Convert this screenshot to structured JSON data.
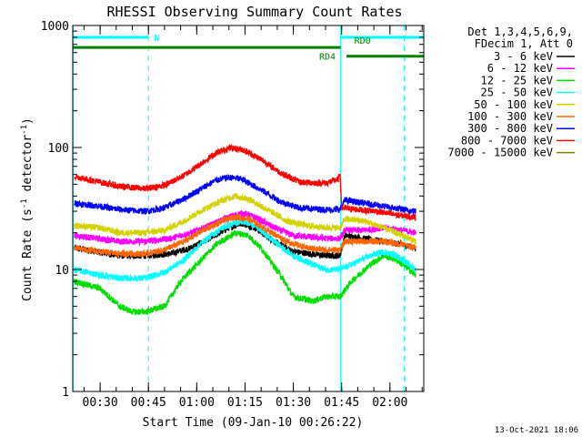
{
  "chart_data": {
    "type": "line",
    "title": "RHESSI Observing Summary Count Rates",
    "xlabel": "Start Time (09-Jan-10 00:26:22)",
    "ylabel_main": "Count Rate (s",
    "ylabel_sup1": "-1",
    "ylabel_mid": " detector",
    "ylabel_sup2": "-1",
    "ylabel_end": ")",
    "y_scale": "log",
    "ylim": [
      1,
      1000
    ],
    "y_ticks": [
      {
        "value": 1,
        "label": "1"
      },
      {
        "value": 10,
        "label": "10"
      },
      {
        "value": 100,
        "label": "100"
      },
      {
        "value": 1000,
        "label": "1000"
      }
    ],
    "x_range_min": [
      21.5,
      130.5
    ],
    "x_ticks": [
      {
        "value": 30,
        "label": "00:30"
      },
      {
        "value": 45,
        "label": "00:45"
      },
      {
        "value": 60,
        "label": "01:00"
      },
      {
        "value": 75,
        "label": "01:15"
      },
      {
        "value": 90,
        "label": "01:30"
      },
      {
        "value": 105,
        "label": "01:45"
      },
      {
        "value": 120,
        "label": "02:00"
      }
    ],
    "legend_header": [
      "Det 1,3,4,5,6,9,",
      "FDecim 1, Att 0"
    ],
    "series": [
      {
        "name": "3 - 6 keV",
        "color": "#000000",
        "points": [
          [
            22,
            15
          ],
          [
            36,
            13
          ],
          [
            44,
            13
          ],
          [
            52,
            13.5
          ],
          [
            58,
            15
          ],
          [
            64,
            18
          ],
          [
            70,
            22
          ],
          [
            74,
            24
          ],
          [
            78,
            22
          ],
          [
            84,
            17
          ],
          [
            90,
            14
          ],
          [
            100,
            13
          ],
          [
            104.5,
            13
          ],
          [
            106,
            19
          ],
          [
            112,
            18
          ],
          [
            118,
            17
          ],
          [
            124,
            16
          ],
          [
            128,
            15
          ]
        ]
      },
      {
        "name": "6 - 12 keV",
        "color": "#ff00ff",
        "points": [
          [
            22,
            19
          ],
          [
            36,
            17
          ],
          [
            44,
            17
          ],
          [
            52,
            18
          ],
          [
            58,
            20
          ],
          [
            64,
            23
          ],
          [
            70,
            27
          ],
          [
            74,
            29
          ],
          [
            78,
            27
          ],
          [
            84,
            22
          ],
          [
            90,
            19
          ],
          [
            100,
            18
          ],
          [
            104.5,
            18
          ],
          [
            106,
            21
          ],
          [
            112,
            21
          ],
          [
            118,
            22
          ],
          [
            124,
            21
          ],
          [
            128,
            20
          ]
        ]
      },
      {
        "name": "12 - 25 keV",
        "color": "#00dd00",
        "points": [
          [
            22,
            8
          ],
          [
            30,
            7
          ],
          [
            36,
            5
          ],
          [
            40,
            4.5
          ],
          [
            44,
            4.5
          ],
          [
            50,
            5
          ],
          [
            55,
            8
          ],
          [
            60,
            11
          ],
          [
            66,
            16
          ],
          [
            72,
            20
          ],
          [
            76,
            19
          ],
          [
            80,
            15
          ],
          [
            86,
            9
          ],
          [
            90,
            6
          ],
          [
            96,
            5.5
          ],
          [
            100,
            6
          ],
          [
            104.5,
            6
          ],
          [
            108,
            8
          ],
          [
            114,
            11
          ],
          [
            118,
            13
          ],
          [
            122,
            12
          ],
          [
            126,
            10
          ],
          [
            128,
            9
          ]
        ]
      },
      {
        "name": "25 - 50 keV",
        "color": "#00ffff",
        "points": [
          [
            22,
            10
          ],
          [
            30,
            9
          ],
          [
            36,
            8.5
          ],
          [
            44,
            8.5
          ],
          [
            50,
            9.5
          ],
          [
            56,
            12
          ],
          [
            62,
            17
          ],
          [
            68,
            22
          ],
          [
            74,
            25
          ],
          [
            78,
            23
          ],
          [
            84,
            17
          ],
          [
            90,
            13
          ],
          [
            96,
            11
          ],
          [
            100,
            10
          ],
          [
            104.5,
            10
          ],
          [
            108,
            11
          ],
          [
            114,
            13
          ],
          [
            118,
            14
          ],
          [
            122,
            13
          ],
          [
            126,
            11
          ],
          [
            128,
            10
          ]
        ]
      },
      {
        "name": "50 - 100 keV",
        "color": "#d2d200",
        "points": [
          [
            22,
            23
          ],
          [
            30,
            22
          ],
          [
            36,
            20
          ],
          [
            44,
            20
          ],
          [
            50,
            21
          ],
          [
            56,
            25
          ],
          [
            62,
            31
          ],
          [
            68,
            37
          ],
          [
            72,
            40
          ],
          [
            76,
            38
          ],
          [
            82,
            31
          ],
          [
            88,
            25
          ],
          [
            94,
            23
          ],
          [
            100,
            22
          ],
          [
            104.5,
            22
          ],
          [
            106,
            26
          ],
          [
            112,
            25
          ],
          [
            118,
            22
          ],
          [
            124,
            19
          ],
          [
            128,
            17
          ]
        ]
      },
      {
        "name": "100 - 300 keV",
        "color": "#ff6600",
        "points": [
          [
            22,
            15
          ],
          [
            30,
            14
          ],
          [
            36,
            13.5
          ],
          [
            44,
            13.5
          ],
          [
            50,
            14.5
          ],
          [
            56,
            17
          ],
          [
            62,
            21
          ],
          [
            68,
            25
          ],
          [
            72,
            27
          ],
          [
            76,
            26
          ],
          [
            82,
            21
          ],
          [
            88,
            17
          ],
          [
            94,
            15
          ],
          [
            100,
            14.5
          ],
          [
            104.5,
            14.5
          ],
          [
            106,
            17
          ],
          [
            112,
            17
          ],
          [
            118,
            17
          ],
          [
            124,
            16
          ],
          [
            128,
            15
          ]
        ]
      },
      {
        "name": "300 - 800 keV",
        "color": "#0000ff",
        "points": [
          [
            22,
            35
          ],
          [
            30,
            33
          ],
          [
            36,
            31
          ],
          [
            44,
            30
          ],
          [
            50,
            32
          ],
          [
            56,
            38
          ],
          [
            62,
            47
          ],
          [
            66,
            54
          ],
          [
            70,
            57
          ],
          [
            74,
            55
          ],
          [
            80,
            45
          ],
          [
            86,
            36
          ],
          [
            92,
            32
          ],
          [
            100,
            31
          ],
          [
            104.5,
            31
          ],
          [
            106,
            37
          ],
          [
            112,
            35
          ],
          [
            118,
            33
          ],
          [
            124,
            31
          ],
          [
            128,
            30
          ]
        ]
      },
      {
        "name": "800 - 7000 keV",
        "color": "#ff0000",
        "points": [
          [
            22,
            58
          ],
          [
            30,
            52
          ],
          [
            36,
            48
          ],
          [
            44,
            46
          ],
          [
            50,
            49
          ],
          [
            56,
            59
          ],
          [
            62,
            76
          ],
          [
            66,
            90
          ],
          [
            70,
            99
          ],
          [
            74,
            97
          ],
          [
            80,
            80
          ],
          [
            86,
            62
          ],
          [
            92,
            52
          ],
          [
            100,
            51
          ],
          [
            104,
            55
          ],
          [
            104.5,
            62
          ],
          [
            105,
            32
          ],
          [
            110,
            31
          ],
          [
            116,
            30
          ],
          [
            122,
            28
          ],
          [
            128,
            27
          ]
        ]
      },
      {
        "name": "7000 - 15000 keV",
        "color": "#808000",
        "points": []
      }
    ],
    "noise_amplitude": 0.06,
    "vlines": [
      {
        "x": 21.6,
        "style": "solid"
      },
      {
        "x": 45,
        "style": "dashed"
      },
      {
        "x": 104.7,
        "style": "solid"
      },
      {
        "x": 124.4,
        "style": "dashed"
      }
    ],
    "flag_bars": [
      {
        "label": "N",
        "color": "#00ffff",
        "y": 800,
        "x_start": 21.6,
        "x_end": 45
      },
      {
        "label": "RD0",
        "color": "#00ffff",
        "y": 800,
        "x_start": 104.7,
        "x_end": 130.5
      },
      {
        "label": "",
        "color": "#008000",
        "y": 660,
        "x_start": 21.6,
        "x_end": 104.7
      },
      {
        "label": "RD4",
        "color": "#008000",
        "y": 560,
        "x_start": 106.5,
        "x_end": 130.5
      }
    ],
    "footer_date": "13-Oct-2021 18:06"
  }
}
